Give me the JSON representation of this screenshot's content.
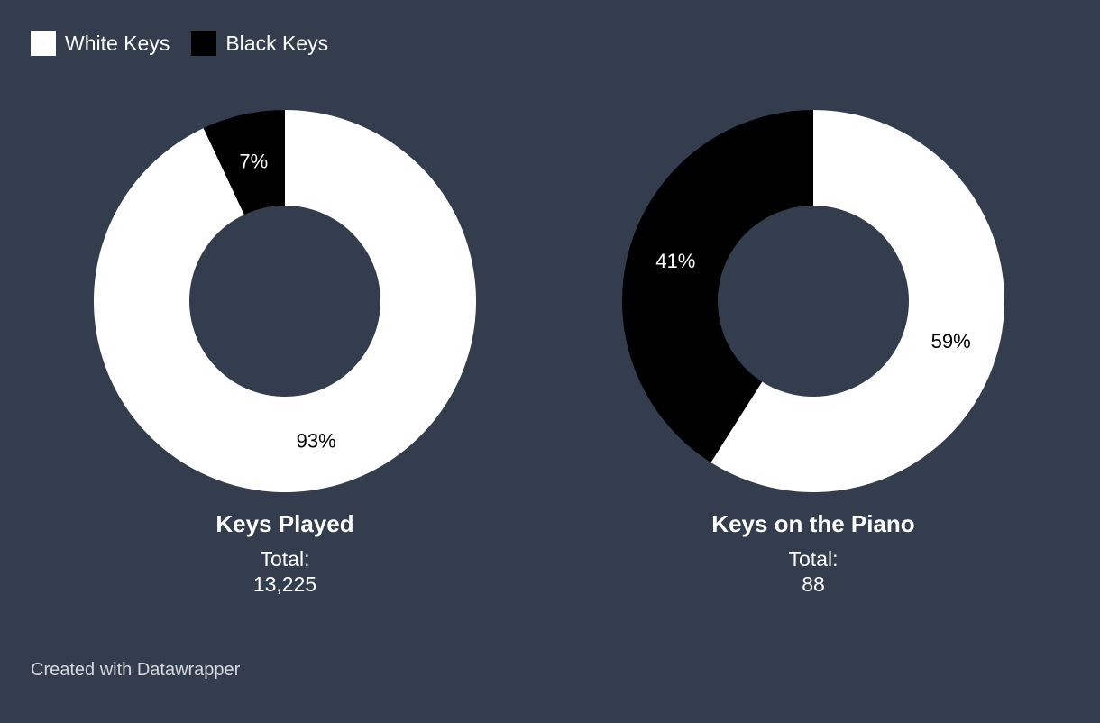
{
  "legend": [
    {
      "label": "White Keys",
      "color": "#ffffff"
    },
    {
      "label": "Black Keys",
      "color": "#000000"
    }
  ],
  "chart_data": [
    {
      "type": "pie",
      "title": "Keys Played",
      "total_label": "Total:",
      "total_value": "13,225",
      "slices": [
        {
          "name": "White Keys",
          "value": 93,
          "label": "93%",
          "color": "#ffffff"
        },
        {
          "name": "Black Keys",
          "value": 7,
          "label": "7%",
          "color": "#000000"
        }
      ]
    },
    {
      "type": "pie",
      "title": "Keys on the Piano",
      "total_label": "Total:",
      "total_value": "88",
      "slices": [
        {
          "name": "White Keys",
          "value": 59,
          "label": "59%",
          "color": "#ffffff"
        },
        {
          "name": "Black Keys",
          "value": 41,
          "label": "41%",
          "color": "#000000"
        }
      ]
    }
  ],
  "footer": "Created with Datawrapper",
  "colors": {
    "background": "#333d4e",
    "white_text_on_dark": "#ffffff",
    "dark_text_on_white": "#000000"
  }
}
